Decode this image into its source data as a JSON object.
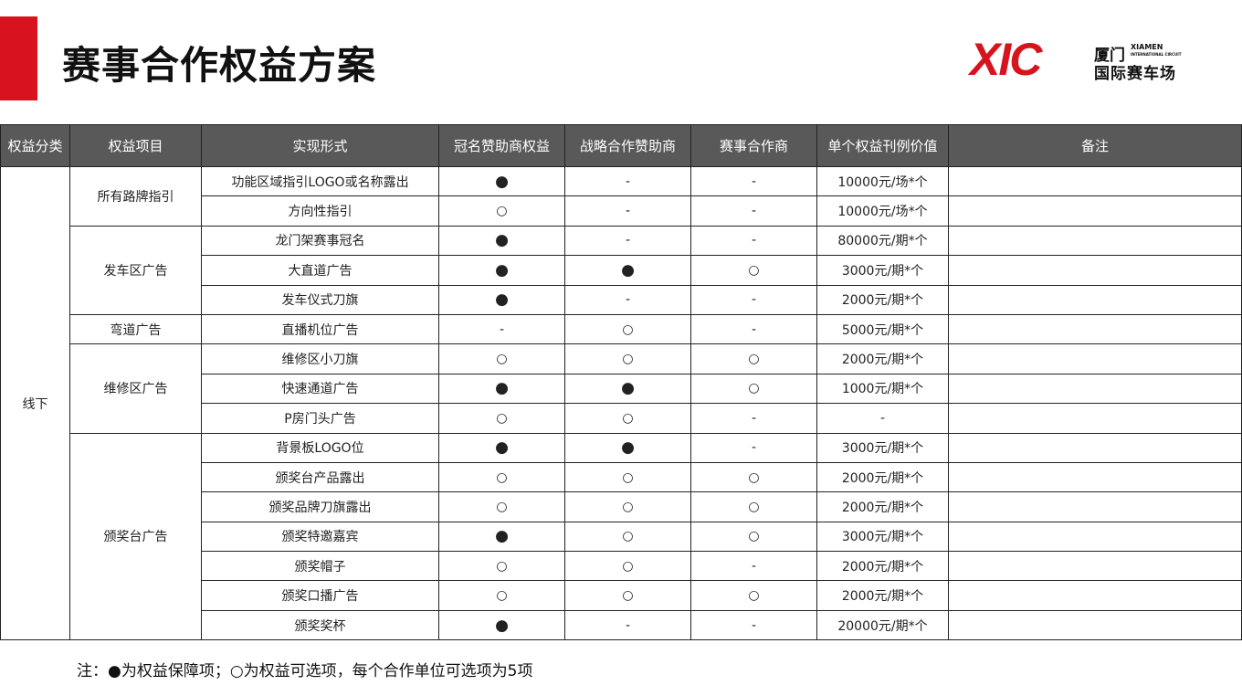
{
  "title": "赛事合作权益方案",
  "logo": {
    "mark": "XIC",
    "cn_top": "厦门",
    "en_top": "XIAMEN",
    "en_sub": "INTERNATIONAL CIRCUIT",
    "cn_bottom": "国际赛车场"
  },
  "colors": {
    "accent": "#d7141e",
    "header_bg": "#595959"
  },
  "table": {
    "headers": [
      "权益分类",
      "权益项目",
      "实现形式",
      "冠名赞助商权益",
      "战略合作赞助商",
      "赛事合作商",
      "单个权益刊例价值",
      "备注"
    ],
    "category": "线下",
    "groups": [
      {
        "name": "所有路牌指引",
        "rows": [
          [
            "功能区域指引LOGO或名称露出",
            "●",
            "-",
            "-",
            "10000元/场*个",
            ""
          ],
          [
            "方向性指引",
            "○",
            "-",
            "-",
            "10000元/场*个",
            ""
          ]
        ]
      },
      {
        "name": "发车区广告",
        "rows": [
          [
            "龙门架赛事冠名",
            "●",
            "-",
            "-",
            "80000元/期*个",
            ""
          ],
          [
            "大直道广告",
            "●",
            "●",
            "○",
            "3000元/期*个",
            ""
          ],
          [
            "发车仪式刀旗",
            "●",
            "-",
            "-",
            "2000元/期*个",
            ""
          ]
        ]
      },
      {
        "name": "弯道广告",
        "rows": [
          [
            "直播机位广告",
            "-",
            "○",
            "-",
            "5000元/期*个",
            ""
          ]
        ]
      },
      {
        "name": "维修区广告",
        "rows": [
          [
            "维修区小刀旗",
            "○",
            "○",
            "○",
            "2000元/期*个",
            ""
          ],
          [
            "快速通道广告",
            "●",
            "●",
            "○",
            "1000元/期*个",
            ""
          ],
          [
            "P房门头广告",
            "○",
            "○",
            "-",
            "-",
            ""
          ]
        ]
      },
      {
        "name": "颁奖台广告",
        "rows": [
          [
            "背景板LOGO位",
            "●",
            "●",
            "-",
            "3000元/期*个",
            ""
          ],
          [
            "颁奖台产品露出",
            "○",
            "○",
            "○",
            "2000元/期*个",
            ""
          ],
          [
            "颁奖品牌刀旗露出",
            "○",
            "○",
            "○",
            "2000元/期*个",
            ""
          ],
          [
            "颁奖特邀嘉宾",
            "●",
            "○",
            "○",
            "3000元/期*个",
            ""
          ],
          [
            "颁奖帽子",
            "○",
            "○",
            "-",
            "2000元/期*个",
            ""
          ],
          [
            "颁奖口播广告",
            "○",
            "○",
            "○",
            "2000元/期*个",
            ""
          ],
          [
            "颁奖奖杯",
            "●",
            "-",
            "-",
            "20000元/期*个",
            ""
          ]
        ]
      }
    ]
  },
  "note": "注：●为权益保障项；○为权益可选项，每个合作单位可选项为5项"
}
